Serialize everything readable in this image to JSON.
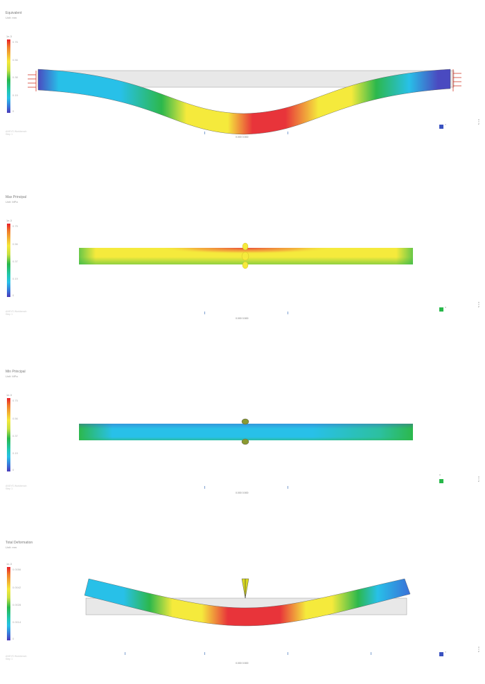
{
  "panels": [
    {
      "id": "p1",
      "title": "Equivalent",
      "subtitle": "Unit: mm",
      "scale_top": "1e-3",
      "ticks": [
        "0.76",
        "0.56",
        "0.38",
        "0.19",
        "0"
      ],
      "footer": [
        "ANSYS Workbench",
        "Step 1"
      ],
      "scale_label": "0.000    0.500",
      "triad_label": "Y",
      "side": [
        "X",
        "Y",
        "Z"
      ],
      "triad_color": "#3a52c0"
    },
    {
      "id": "p2",
      "title": "Max Principal",
      "subtitle": "Unit: MPa",
      "scale_top": "1e-3",
      "ticks": [
        "0.75",
        "0.56",
        "0.37",
        "0.19",
        "0"
      ],
      "footer": [
        "ANSYS Workbench",
        "Step 1"
      ],
      "scale_label": "0.000    0.500",
      "triad_label": "X",
      "side": [
        "X",
        "Y",
        "Z"
      ],
      "triad_color": "#28b84a"
    },
    {
      "id": "p3",
      "title": "Min Principal",
      "subtitle": "Unit: MPa",
      "scale_top": "1e-3",
      "ticks": [
        "0.75",
        "0.56",
        "0.37",
        "0.19",
        "0"
      ],
      "footer": [
        "ANSYS Workbench",
        "Step 1"
      ],
      "scale_label": "0.000    0.500",
      "triad_label": "X",
      "side": [
        "X",
        "Y",
        "Z"
      ],
      "triad_color": "#28b84a"
    },
    {
      "id": "p4",
      "title": "Total Deformation",
      "subtitle": "Unit: mm",
      "scale_top": "1e-3",
      "ticks": [
        "0.0056",
        "0.0042",
        "0.0028",
        "0.0014",
        "0"
      ],
      "footer": [
        "ANSYS Workbench",
        "Step 1"
      ],
      "scale_label": "0.000    0.500",
      "triad_label": "Y",
      "side": [
        "X",
        "Y",
        "Z"
      ],
      "triad_color": "#3a52c0"
    }
  ],
  "colors": {
    "red": "#e8343a",
    "orange": "#f2803a",
    "yellow": "#f5ea3c",
    "green": "#2cb84c",
    "cyan": "#28c0e8",
    "blue": "#4a4ac0",
    "ghost": "#e6e6e6",
    "support": "#d23a2a"
  }
}
